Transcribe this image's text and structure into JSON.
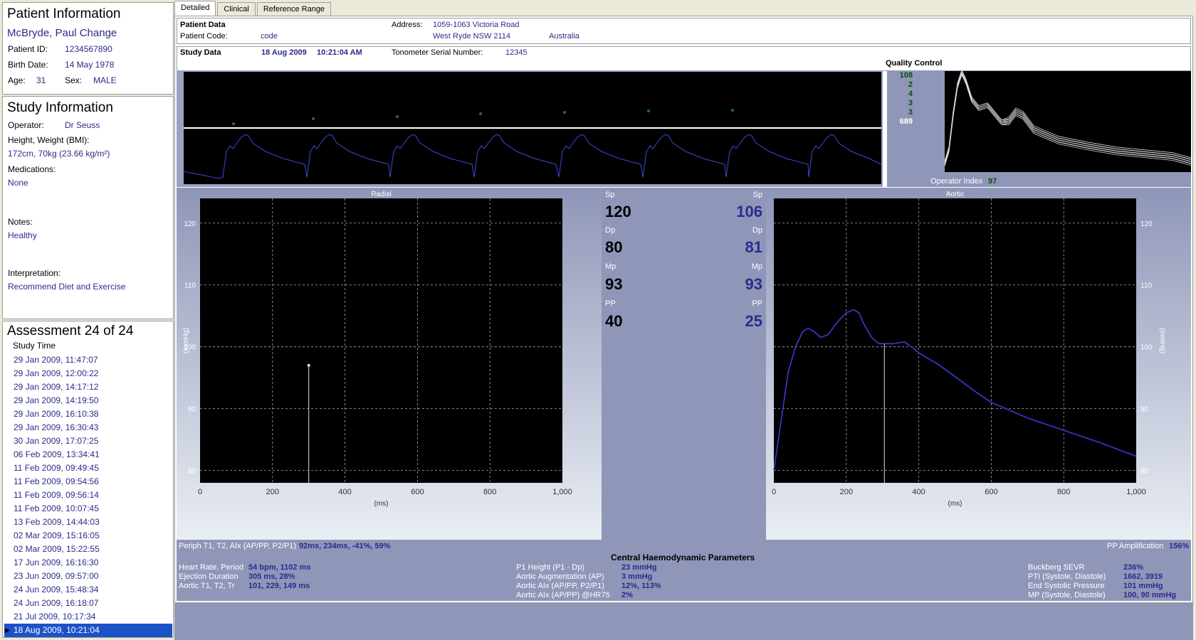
{
  "patient": {
    "section_title": "Patient Information",
    "name": "McBryde, Paul Change",
    "id_label": "Patient ID:",
    "id": "1234567890",
    "birth_label": "Birth Date:",
    "birth": "14 May 1978",
    "age_label": "Age:",
    "age": "31",
    "sex_label": "Sex:",
    "sex": "MALE"
  },
  "study": {
    "section_title": "Study Information",
    "operator_label": "Operator:",
    "operator": "Dr Seuss",
    "hw_label": "Height, Weight (BMI):",
    "hw": "172cm, 70kg (23.66 kg/m²)",
    "med_label": "Medications:",
    "med": "None",
    "notes_label": "Notes:",
    "notes": "Healthy",
    "interp_label": "Interpretation:",
    "interp": "Recommend Diet and Exercise"
  },
  "assessment": {
    "title": "Assessment 24 of 24",
    "col": "Study Time",
    "items": [
      "29 Jan 2009, 11:47:07",
      "29 Jan 2009, 12:00:22",
      "29 Jan 2009, 14:17:12",
      "29 Jan 2009, 14:19:50",
      "29 Jan 2009, 16:10:38",
      "29 Jan 2009, 16:30:43",
      "30 Jan 2009, 17:07:25",
      "06 Feb 2009, 13:34:41",
      "11 Feb 2009, 09:49:45",
      "11 Feb 2009, 09:54:56",
      "11 Feb 2009, 09:56:14",
      "11 Feb 2009, 10:07:45",
      "13 Feb 2009, 14:44:03",
      "02 Mar 2009, 15:16:05",
      "02 Mar 2009, 15:22:55",
      "17 Jun 2009, 16:16:30",
      "23 Jun 2009, 09:57:00",
      "24 Jun 2009, 15:48:34",
      "24 Jun 2009, 16:18:07",
      "21 Jul 2009, 10:17:34",
      "18 Aug 2009, 10:21:04"
    ],
    "selected": "18 Aug 2009, 10:21:04"
  },
  "tabs": [
    "Detailed",
    "Clinical",
    "Reference Range"
  ],
  "patient_data": {
    "title": "Patient Data",
    "code_label": "Patient Code:",
    "code": "code",
    "address_label": "Address:",
    "address1": "1059-1063 Victoria Road",
    "address2": "West Ryde NSW 2114",
    "country": "Australia"
  },
  "study_data": {
    "title": "Study Data",
    "date": "18 Aug 2009",
    "time": "10:21:04 AM",
    "serial_label": "Tonometer Serial Number:",
    "serial": "12345"
  },
  "qc": {
    "title": "Quality Control",
    "values": [
      "108",
      "2",
      "4",
      "3",
      "3",
      "689"
    ],
    "op_label": "Operator Index",
    "op_value": "97"
  },
  "pressures": {
    "sp": "Sp",
    "dp": "Dp",
    "mp": "Mp",
    "pp": "PP",
    "radial": {
      "sp": "120",
      "dp": "80",
      "mp": "93",
      "pp": "40"
    },
    "aortic": {
      "sp": "106",
      "dp": "81",
      "mp": "93",
      "pp": "25"
    }
  },
  "chart_data": [
    {
      "type": "line",
      "title": "Radial",
      "xlabel": "(ms)",
      "ylabel": "(mmHg)",
      "xlim": [
        0,
        1000
      ],
      "ylim": [
        78,
        124
      ],
      "xticks": [
        "0",
        "200",
        "400",
        "600",
        "800",
        "1,000"
      ],
      "yticks": [
        "80",
        "90",
        "100",
        "110",
        "120"
      ],
      "markers_x": [
        300
      ],
      "marker_top_y": 97,
      "series": []
    },
    {
      "type": "line",
      "title": "Aortic",
      "xlabel": "(ms)",
      "ylabel": "(mmHg)",
      "xlim": [
        0,
        1000
      ],
      "ylim": [
        78,
        124
      ],
      "xticks": [
        "0",
        "200",
        "400",
        "600",
        "800",
        "1,000"
      ],
      "yticks": [
        "80",
        "90",
        "100",
        "110",
        "120"
      ],
      "markers_x": [
        305
      ],
      "series": [
        {
          "x": [
            0,
            20,
            40,
            60,
            80,
            95,
            110,
            130,
            150,
            175,
            200,
            220,
            235,
            250,
            270,
            290,
            310,
            330,
            360,
            380,
            400,
            450,
            500,
            550,
            600,
            700,
            800,
            900,
            1000
          ],
          "y": [
            80,
            88,
            96,
            100,
            102.5,
            103,
            102.5,
            101.5,
            102,
            104,
            105.5,
            106,
            105.5,
            103.5,
            101.5,
            100.5,
            100.5,
            100.5,
            100.8,
            100,
            99,
            97.3,
            95.2,
            93,
            91,
            88.5,
            86.5,
            84.5,
            82.3
          ]
        }
      ]
    }
  ],
  "radial_params": {
    "label": "Periph T1, T2, AIx (AP/PP, P2/P1)",
    "value": "92ms, 234ms, -41%, 59%"
  },
  "pp_amp": {
    "label": "PP Amplification",
    "value": "156%"
  },
  "chp": {
    "title": "Central Haemodynamic Parameters",
    "col1": [
      {
        "l": "Heart Rate, Period",
        "v": "54 bpm, 1102 ms"
      },
      {
        "l": "Ejection Duration",
        "v": "305 ms, 28%"
      },
      {
        "l": "Aortic T1, T2, Tr",
        "v": "101, 229, 149 ms"
      }
    ],
    "col2": [
      {
        "l": "P1 Height (P1 - Dp)",
        "v": "23 mmHg"
      },
      {
        "l": "Aortic Augmentation (AP)",
        "v": "3 mmHg"
      },
      {
        "l": "Aortic AIx (AP/PP, P2/P1)",
        "v": "12%, 113%"
      },
      {
        "l": "Aortic AIx (AP/PP) @HR75",
        "v": "2%"
      }
    ],
    "col3": [
      {
        "l": "Buckberg SEVR",
        "v": "236%"
      },
      {
        "l": "PTI (Systole, Diastole)",
        "v": "1662, 3919"
      },
      {
        "l": "End Systolic Pressure",
        "v": "101 mmHg"
      },
      {
        "l": "MP (Systole, Diastole)",
        "v": "100, 90 mmHg"
      }
    ]
  }
}
